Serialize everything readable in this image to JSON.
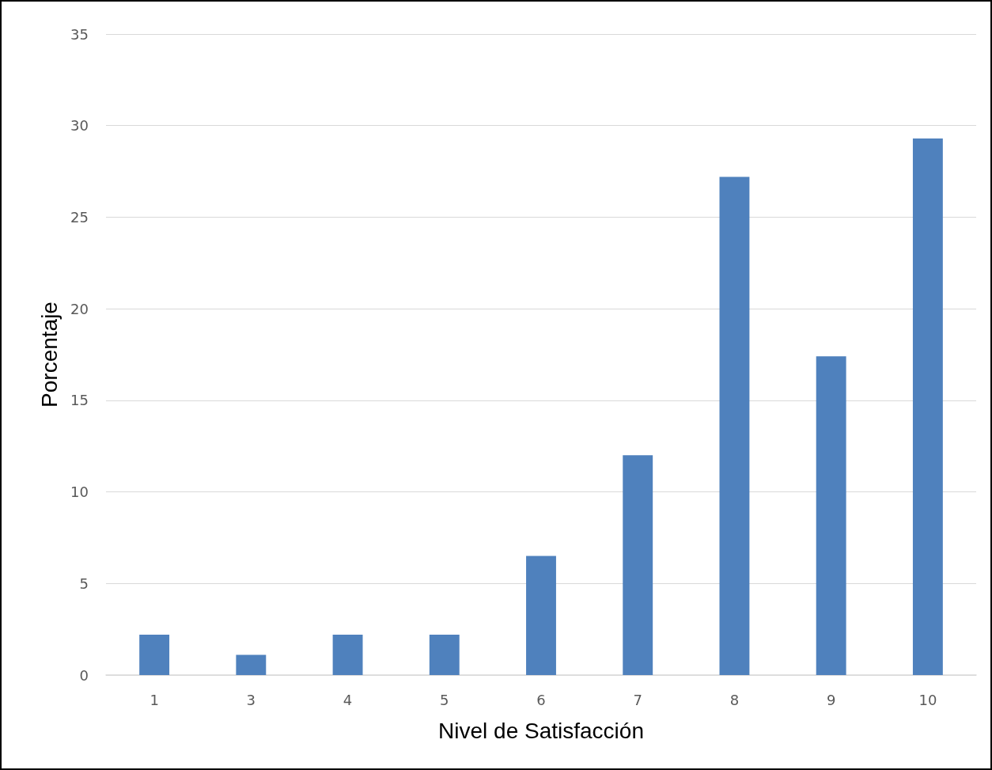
{
  "chart_data": {
    "type": "bar",
    "xlabel": "Nivel de Satisfacción",
    "ylabel": "Porcentaje",
    "categories": [
      "1",
      "3",
      "4",
      "5",
      "6",
      "7",
      "8",
      "9",
      "10"
    ],
    "values": [
      2.2,
      1.1,
      2.2,
      2.2,
      6.5,
      12.0,
      27.2,
      17.4,
      29.3
    ],
    "color": "#4f81bd",
    "ylim": [
      0,
      35
    ],
    "yticks": [
      0,
      5,
      10,
      15,
      20,
      25,
      30,
      35
    ],
    "grid": "y"
  }
}
